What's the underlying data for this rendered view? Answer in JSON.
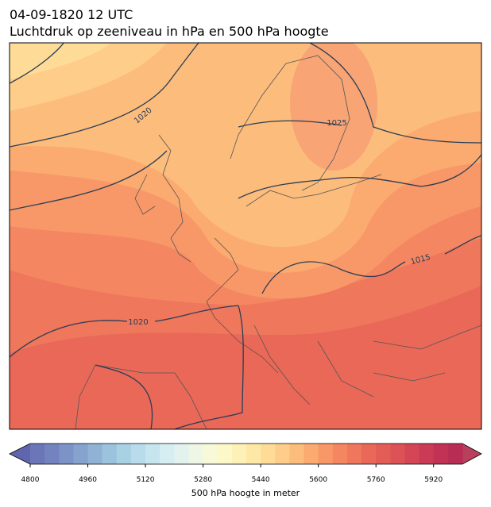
{
  "title": "04-09-1820 12 UTC",
  "subtitle": "Luchtdruk op zeeniveau in hPa en 500 hPa hoogte",
  "isobar_labels": [
    1020,
    1025,
    1015,
    1020
  ],
  "colorbar": {
    "label": "500 hPa hoogte in meter",
    "range": [
      4800,
      6000
    ],
    "ticks": [
      4800,
      4960,
      5120,
      5280,
      5440,
      5600,
      5760,
      5920
    ],
    "under_color": "#5f66ad",
    "over_color": "#b8405c",
    "colors": [
      "#6b76b8",
      "#7383bf",
      "#7b93c6",
      "#85a3cd",
      "#90b3d5",
      "#9cc3dd",
      "#a9d1e4",
      "#b8dceb",
      "#c7e5ef",
      "#d6edf1",
      "#e3f2ef",
      "#eef6e6",
      "#f7f9d9",
      "#fdf8c8",
      "#fef1b8",
      "#fee8a6",
      "#fedc98",
      "#fdcd89",
      "#fcbc7c",
      "#fbaa70",
      "#f89868",
      "#f48761",
      "#ef775c",
      "#e96858",
      "#e35d57",
      "#dc5256",
      "#d44656",
      "#cb3b56",
      "#c23255",
      "#b82d54"
    ]
  }
}
